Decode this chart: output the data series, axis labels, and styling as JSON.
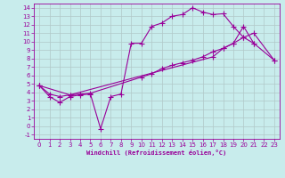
{
  "xlabel": "Windchill (Refroidissement éolien,°C)",
  "bg_color": "#c8ecec",
  "grid_color": "#b0c8c8",
  "line_color": "#990099",
  "xlim": [
    -0.5,
    23.5
  ],
  "ylim": [
    -1.5,
    14.5
  ],
  "xticks": [
    0,
    1,
    2,
    3,
    4,
    5,
    6,
    7,
    8,
    9,
    10,
    11,
    12,
    13,
    14,
    15,
    16,
    17,
    18,
    19,
    20,
    21,
    22,
    23
  ],
  "yticks": [
    -1,
    0,
    1,
    2,
    3,
    4,
    5,
    6,
    7,
    8,
    9,
    10,
    11,
    12,
    13,
    14
  ],
  "line1_x": [
    0,
    1,
    2,
    3,
    4,
    5,
    6,
    7,
    8,
    9,
    10,
    11,
    12,
    13,
    14,
    15,
    16,
    17,
    18,
    19,
    20,
    21
  ],
  "line1_y": [
    4.8,
    3.5,
    2.8,
    3.5,
    3.7,
    3.8,
    -0.3,
    3.5,
    3.8,
    9.8,
    9.8,
    11.8,
    12.2,
    13.0,
    13.2,
    14.0,
    13.5,
    13.2,
    13.3,
    11.8,
    10.5,
    9.8
  ],
  "line2_x": [
    0,
    1,
    2,
    3,
    4,
    5,
    10,
    11,
    12,
    13,
    14,
    15,
    16,
    17,
    18,
    19,
    20,
    21,
    23
  ],
  "line2_y": [
    4.8,
    3.8,
    3.5,
    3.7,
    3.8,
    3.9,
    5.8,
    6.2,
    6.8,
    7.2,
    7.5,
    7.8,
    8.2,
    8.8,
    9.2,
    9.8,
    10.5,
    11.0,
    7.8
  ],
  "line3_x": [
    0,
    3,
    17,
    18,
    19,
    20,
    21,
    23
  ],
  "line3_y": [
    4.8,
    3.7,
    8.2,
    9.2,
    9.8,
    11.8,
    9.8,
    7.8
  ]
}
